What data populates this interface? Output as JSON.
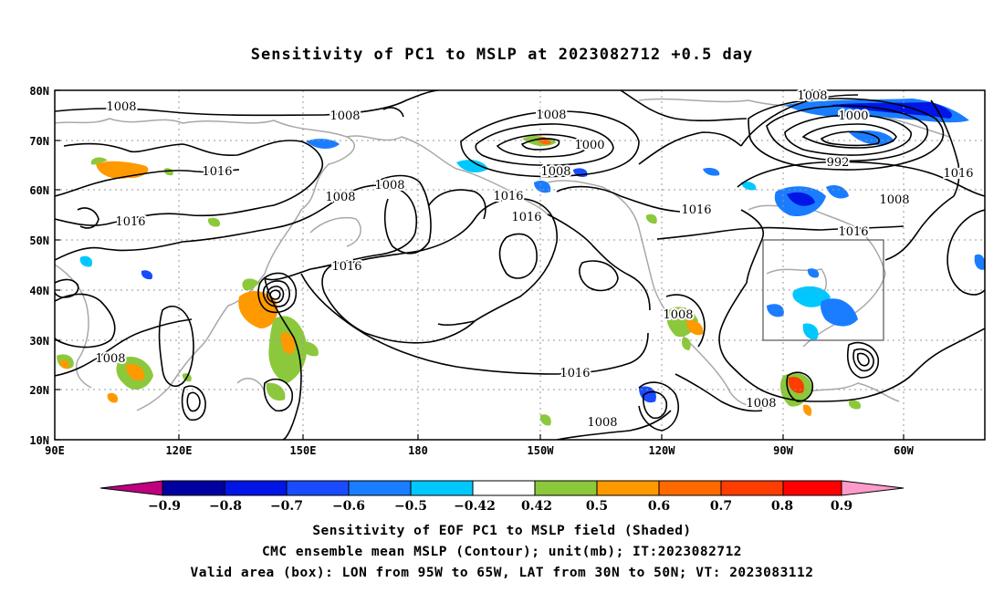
{
  "title": "Sensitivity of PC1 to MSLP at 2023082712 +0.5 day",
  "lat_labels": [
    "80N",
    "70N",
    "60N",
    "50N",
    "40N",
    "30N",
    "20N",
    "10N"
  ],
  "lon_labels": [
    "90E",
    "120E",
    "150E",
    "180",
    "150W",
    "120W",
    "90W",
    "60W"
  ],
  "contour_labels": [
    "1008",
    "1008",
    "1008",
    "1016",
    "1016",
    "1008",
    "1008",
    "1008",
    "1000",
    "1008",
    "1016",
    "1016",
    "1016",
    "1016",
    "1016",
    "1008",
    "1000",
    "992",
    "1008",
    "1016",
    "1016",
    "1008",
    "1008",
    "1008"
  ],
  "colorbar": {
    "labels": [
      "−0.9",
      "−0.8",
      "−0.7",
      "−0.6",
      "−0.5",
      "−0.42",
      "0.42",
      "0.5",
      "0.6",
      "0.7",
      "0.8",
      "0.9"
    ],
    "colors": [
      "#c0007f",
      "#0000a0",
      "#0015e6",
      "#1a4cff",
      "#1a7dff",
      "#00c8ff",
      "#ffffff",
      "#8cc83c",
      "#ff9900",
      "#ff6a00",
      "#ff3c00",
      "#ff0000",
      "#ff9bc8"
    ]
  },
  "footer": [
    "Sensitivity of EOF PC1 to MSLP field (Shaded)",
    "CMC ensemble mean MSLP (Contour); unit(mb); IT:2023082712",
    "Valid area (box): LON from 95W to 65W, LAT from 30N to 50N; VT: 2023083112"
  ]
}
